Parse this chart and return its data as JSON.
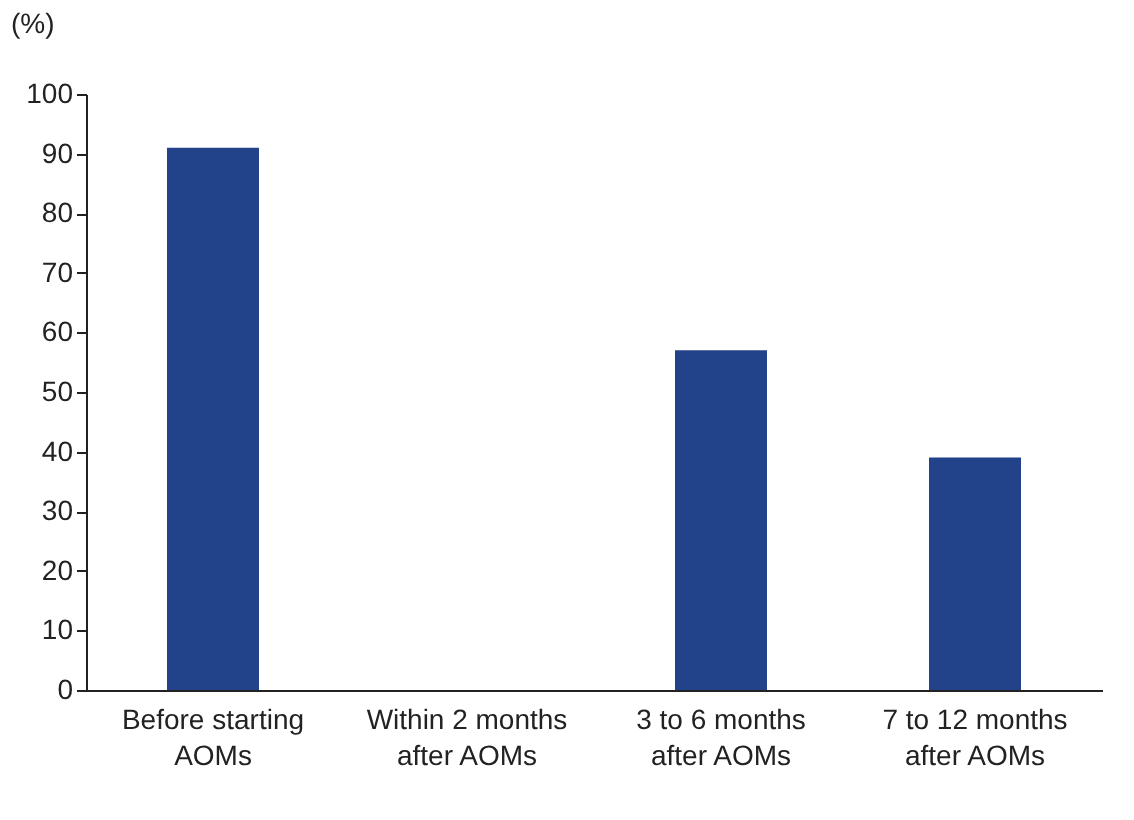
{
  "chart_data": {
    "type": "bar",
    "categories": [
      "Before starting\nAOMs",
      "Within 2 months\nafter AOMs",
      "3 to 6 months\nafter AOMs",
      "7 to 12 months\nafter AOMs"
    ],
    "values": [
      91,
      0,
      57,
      39
    ],
    "color": "#22428a",
    "ylabel": "(%)",
    "ylim": [
      0,
      100
    ],
    "yticks": [
      0,
      10,
      20,
      30,
      40,
      50,
      60,
      70,
      80,
      90,
      100
    ],
    "grid": false
  }
}
